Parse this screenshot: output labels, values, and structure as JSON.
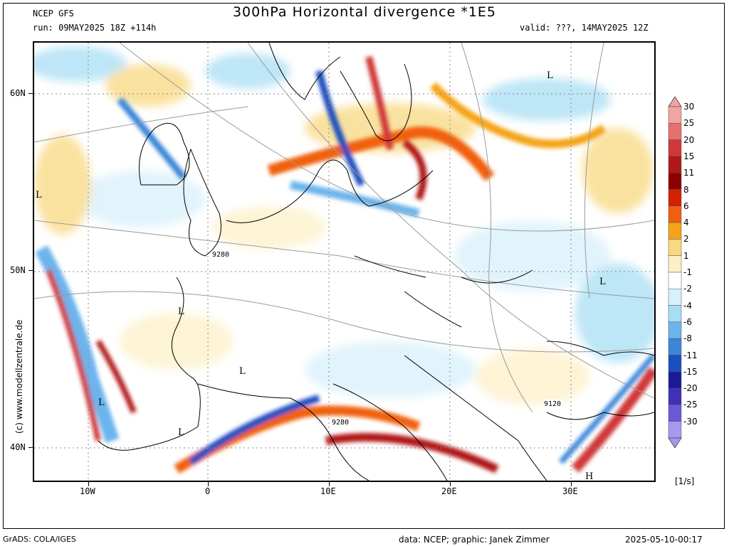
{
  "header": {
    "model": "NCEP GFS",
    "run": "run: 09MAY2025 18Z +114h",
    "title": "300hPa Horizontal divergence *1E5",
    "valid": "valid: ???, 14MAY2025 12Z"
  },
  "map": {
    "lat_labels": [
      "60N",
      "50N",
      "40N"
    ],
    "lon_labels": [
      "10W",
      "0",
      "10E",
      "20E",
      "30E"
    ],
    "pressure_labels": [
      {
        "text": "L"
      },
      {
        "text": "L"
      },
      {
        "text": "L"
      },
      {
        "text": "L"
      },
      {
        "text": "L"
      },
      {
        "text": "L"
      },
      {
        "text": "L"
      },
      {
        "text": "H"
      }
    ],
    "contour_labels": [
      "9280",
      "9280",
      "9120"
    ]
  },
  "colorbar": {
    "unit": "[1/s]",
    "levels": [
      "30",
      "25",
      "20",
      "15",
      "11",
      "8",
      "6",
      "4",
      "2",
      "1",
      "-1",
      "-2",
      "-4",
      "-6",
      "-8",
      "-11",
      "-15",
      "-20",
      "-25",
      "-30"
    ],
    "colors": [
      "#f2a3a3",
      "#e87070",
      "#d03838",
      "#b01818",
      "#8c0000",
      "#d42000",
      "#f06010",
      "#f4a418",
      "#f8d880",
      "#fdf0c8",
      "#ffffff",
      "#d8f0fa",
      "#a8def4",
      "#6cb4ec",
      "#3a86d8",
      "#1c4ec0",
      "#1a1a98",
      "#4030b8",
      "#6a5ad8",
      "#a898f0"
    ]
  },
  "footer": {
    "left": "GrADS: COLA/IGES",
    "center": "data: NCEP; graphic: Janek Zimmer",
    "right": "2025-05-10-00:17",
    "watermark": "(c) www.modellzentrale.de"
  }
}
